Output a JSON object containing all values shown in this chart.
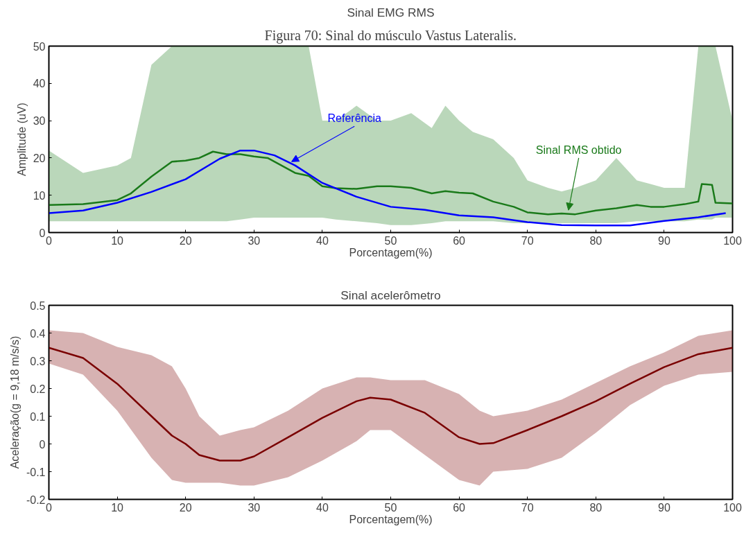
{
  "chart_data": [
    {
      "type": "line",
      "title": "Sinal EMG RMS",
      "xlabel": "Porcentagem(%)",
      "ylabel": "Amplitude (uV)",
      "annotations": [
        "Figura 70: Sinal do músculo Vastus Lateralis.",
        {
          "text": "Referência",
          "x": 35.5,
          "y": 19
        },
        {
          "text": "Sinal RMS obtido",
          "x": 76,
          "y": 6
        }
      ],
      "xlim": [
        0,
        100
      ],
      "ylim": [
        0,
        50
      ],
      "xticks": [
        0,
        10,
        20,
        30,
        40,
        50,
        60,
        70,
        80,
        90,
        100
      ],
      "yticks": [
        0,
        10,
        20,
        30,
        40,
        50
      ],
      "grid": false,
      "marker": "none",
      "line_style": "solid",
      "series": [
        {
          "color": "#1a7a1a",
          "x": [
            0,
            5,
            10,
            12,
            15,
            18,
            20,
            22,
            24,
            26,
            28,
            30,
            32,
            34,
            36,
            38,
            40,
            42,
            45,
            48,
            50,
            53,
            56,
            58,
            60,
            62,
            65,
            68,
            70,
            73,
            75,
            77,
            80,
            83,
            86,
            88,
            90,
            93,
            95,
            95.5,
            97,
            97.5,
            100
          ],
          "values": [
            7.4,
            7.6,
            8.7,
            10.5,
            15,
            19,
            19.3,
            20,
            21.7,
            21,
            21,
            20.4,
            20,
            18,
            16,
            15.2,
            12.4,
            11.9,
            11.7,
            12.4,
            12.4,
            12,
            10.5,
            11.1,
            10.7,
            10.5,
            8.3,
            6.9,
            5.4,
            4.9,
            5.1,
            4.9,
            5.9,
            6.5,
            7.4,
            6.9,
            6.9,
            7.6,
            8.3,
            13,
            12.8,
            8,
            7.8
          ],
          "lower": [
            3,
            3,
            3,
            3,
            3,
            3,
            3,
            3,
            3,
            3,
            3.5,
            4,
            4,
            4,
            4,
            4,
            4,
            3.5,
            3,
            2.5,
            2,
            2,
            2.5,
            3,
            3,
            3,
            3,
            2.5,
            2.5,
            2.5,
            2.5,
            2.5,
            2.5,
            2.5,
            3,
            3,
            3,
            3,
            3.5,
            3.5,
            3.5,
            4,
            4
          ],
          "upper": [
            22,
            16,
            18,
            20,
            45,
            50,
            50,
            50,
            50,
            50,
            50,
            50,
            50,
            50,
            50,
            50,
            30,
            30,
            34,
            30,
            30,
            32,
            28,
            34,
            30,
            27,
            25,
            20,
            14,
            12,
            11,
            12,
            14,
            20,
            14,
            13,
            12,
            12,
            50,
            50,
            50,
            50,
            30
          ]
        },
        {
          "color": "#0000ff",
          "x": [
            0,
            5,
            10,
            15,
            20,
            25,
            28,
            30,
            33,
            36,
            40,
            45,
            50,
            55,
            60,
            65,
            70,
            75,
            80,
            85,
            90,
            95,
            99
          ],
          "values": [
            5.2,
            5.9,
            8,
            10.9,
            14.3,
            19.8,
            22,
            22,
            20.7,
            18,
            13.3,
            9.6,
            6.9,
            6.1,
            4.6,
            4.1,
            2.8,
            2,
            1.9,
            1.9,
            3.1,
            4.1,
            5.2
          ]
        }
      ]
    },
    {
      "type": "line",
      "title": "Sinal acelerômetro",
      "xlabel": "Porcentagem(%)",
      "ylabel": "Aceleração(g = 9,18 m/s/s)",
      "xlim": [
        0,
        100
      ],
      "ylim": [
        -0.2,
        0.5
      ],
      "xticks": [
        0,
        10,
        20,
        30,
        40,
        50,
        60,
        70,
        80,
        90,
        100
      ],
      "yticks": [
        -0.2,
        -0.1,
        0,
        0.1,
        0.2,
        0.3,
        0.4,
        0.5
      ],
      "grid": false,
      "marker": "none",
      "line_style": "solid",
      "series": [
        {
          "color": "#7a0000",
          "x": [
            0,
            5,
            10,
            15,
            18,
            20,
            22,
            25,
            28,
            30,
            35,
            40,
            45,
            47,
            50,
            55,
            60,
            63,
            65,
            70,
            75,
            80,
            85,
            90,
            95,
            100
          ],
          "values": [
            0.347,
            0.31,
            0.217,
            0.1,
            0.03,
            0,
            -0.04,
            -0.06,
            -0.06,
            -0.045,
            0.024,
            0.094,
            0.154,
            0.167,
            0.16,
            0.112,
            0.024,
            0,
            0.003,
            0.05,
            0.1,
            0.154,
            0.217,
            0.277,
            0.324,
            0.347
          ],
          "lower": [
            0.29,
            0.25,
            0.12,
            -0.05,
            -0.13,
            -0.14,
            -0.14,
            -0.14,
            -0.15,
            -0.15,
            -0.12,
            -0.06,
            0.01,
            0.05,
            0.05,
            -0.04,
            -0.13,
            -0.15,
            -0.1,
            -0.09,
            -0.05,
            0.04,
            0.14,
            0.21,
            0.25,
            0.26
          ],
          "upper": [
            0.41,
            0.4,
            0.35,
            0.32,
            0.28,
            0.2,
            0.1,
            0.03,
            0.05,
            0.06,
            0.12,
            0.2,
            0.24,
            0.24,
            0.23,
            0.23,
            0.18,
            0.12,
            0.1,
            0.12,
            0.16,
            0.22,
            0.28,
            0.33,
            0.39,
            0.41
          ]
        }
      ]
    }
  ]
}
